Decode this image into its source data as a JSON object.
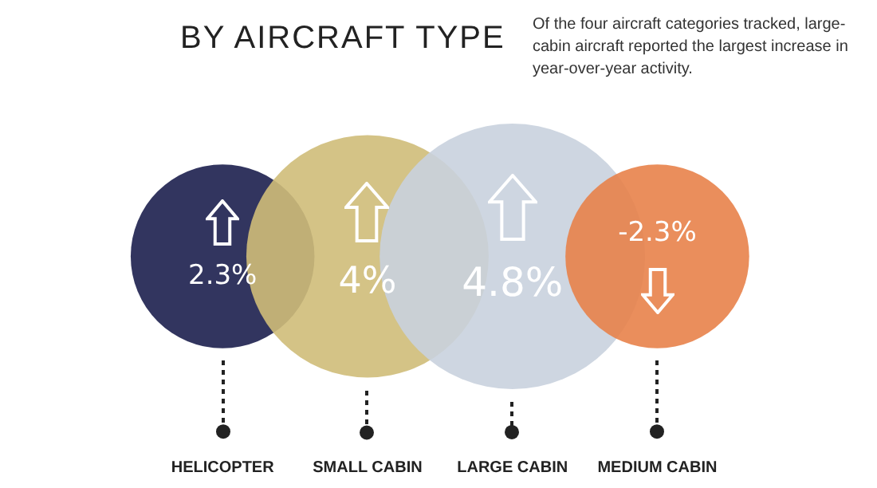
{
  "chart_data": {
    "type": "other",
    "title": "BY AIRCRAFT TYPE",
    "subtitle": "Of the four aircraft categories tracked, large-cabin aircraft reported the largest increase in year-over-year activity.",
    "categories": [
      "HELICOPTER",
      "SMALL CABIN",
      "LARGE CABIN",
      "MEDIUM CABIN"
    ],
    "values": [
      2.3,
      4,
      4.8,
      -2.3
    ],
    "value_labels": [
      "2.3%",
      "4%",
      "4.8%",
      "-2.3%"
    ],
    "colors": [
      "#1c1f4e",
      "#cfbd79",
      "#c9d2de",
      "#e8824a"
    ]
  }
}
